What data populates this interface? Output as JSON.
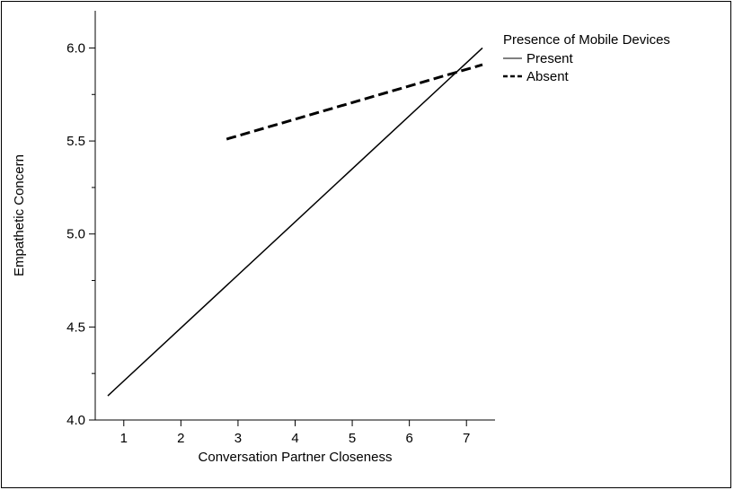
{
  "chart_data": {
    "type": "line",
    "title": "",
    "xlabel": "Conversation Partner Closeness",
    "ylabel": "Empathetic Concern",
    "xlim": [
      0.5,
      7.5
    ],
    "ylim": [
      4.0,
      6.2
    ],
    "xticks": [
      1,
      2,
      3,
      4,
      5,
      6,
      7
    ],
    "yticks": [
      4.0,
      4.5,
      5.0,
      5.5,
      6.0
    ],
    "ytick_labels": [
      "4.0",
      "4.5",
      "5.0",
      "5.5",
      "6.0"
    ],
    "grid": false,
    "legend": {
      "title": "Presence of Mobile Devices",
      "position": "top-right-outside"
    },
    "series": [
      {
        "name": "Present",
        "style": "solid",
        "color": "#000000",
        "x": [
          0.72,
          7.28
        ],
        "y": [
          4.13,
          6.0
        ]
      },
      {
        "name": "Absent",
        "style": "dashed",
        "color": "#000000",
        "x": [
          2.8,
          7.28
        ],
        "y": [
          5.51,
          5.91
        ]
      }
    ]
  }
}
